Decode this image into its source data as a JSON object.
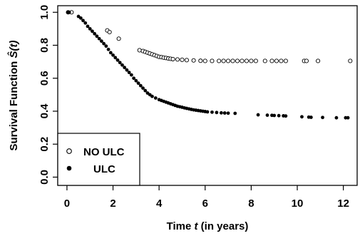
{
  "chart_data": {
    "type": "scatter",
    "xlabel": {
      "prefix": "Time ",
      "var": "t",
      "suffix": " (in years)"
    },
    "ylabel": {
      "prefix": "Survival Function ",
      "var": "Ŝ(t)"
    },
    "xlim": [
      -0.4,
      12.6
    ],
    "ylim": [
      -0.05,
      1.04
    ],
    "xticks": [
      0,
      2,
      4,
      6,
      8,
      10,
      12
    ],
    "yticks": [
      0.0,
      0.2,
      0.4,
      0.6,
      0.8,
      1.0
    ],
    "xtick_labels": [
      "0",
      "2",
      "4",
      "6",
      "8",
      "10",
      "12"
    ],
    "ytick_labels": [
      "0.0",
      "0.2",
      "0.4",
      "0.6",
      "0.8",
      "1.0"
    ],
    "grid": false,
    "legend_position": "bottom-left",
    "series": [
      {
        "name": "NO ULC",
        "marker": "open-circle",
        "points": [
          [
            0.05,
            1.0
          ],
          [
            0.2,
            1.0
          ],
          [
            1.75,
            0.89
          ],
          [
            1.85,
            0.88
          ],
          [
            2.25,
            0.84
          ],
          [
            3.15,
            0.77
          ],
          [
            3.3,
            0.765
          ],
          [
            3.4,
            0.76
          ],
          [
            3.5,
            0.755
          ],
          [
            3.6,
            0.75
          ],
          [
            3.7,
            0.745
          ],
          [
            3.8,
            0.74
          ],
          [
            3.9,
            0.735
          ],
          [
            4.0,
            0.73
          ],
          [
            4.1,
            0.728
          ],
          [
            4.2,
            0.725
          ],
          [
            4.3,
            0.723
          ],
          [
            4.4,
            0.72
          ],
          [
            4.5,
            0.718
          ],
          [
            4.6,
            0.716
          ],
          [
            4.8,
            0.714
          ],
          [
            5.0,
            0.712
          ],
          [
            5.2,
            0.71
          ],
          [
            5.5,
            0.708
          ],
          [
            5.8,
            0.706
          ],
          [
            6.0,
            0.705
          ],
          [
            6.3,
            0.705
          ],
          [
            6.6,
            0.705
          ],
          [
            6.8,
            0.705
          ],
          [
            7.0,
            0.705
          ],
          [
            7.2,
            0.705
          ],
          [
            7.4,
            0.705
          ],
          [
            7.6,
            0.705
          ],
          [
            7.8,
            0.705
          ],
          [
            8.0,
            0.705
          ],
          [
            8.2,
            0.705
          ],
          [
            8.6,
            0.705
          ],
          [
            8.9,
            0.705
          ],
          [
            9.1,
            0.705
          ],
          [
            9.3,
            0.705
          ],
          [
            9.5,
            0.705
          ],
          [
            10.3,
            0.705
          ],
          [
            10.4,
            0.705
          ],
          [
            10.9,
            0.705
          ],
          [
            12.3,
            0.705
          ]
        ]
      },
      {
        "name": "ULC",
        "marker": "filled-circle",
        "points": [
          [
            0.05,
            1.0
          ],
          [
            0.1,
            1.0
          ],
          [
            0.5,
            0.975
          ],
          [
            0.6,
            0.965
          ],
          [
            0.7,
            0.95
          ],
          [
            0.8,
            0.935
          ],
          [
            0.9,
            0.915
          ],
          [
            1.0,
            0.9
          ],
          [
            1.1,
            0.885
          ],
          [
            1.2,
            0.87
          ],
          [
            1.3,
            0.855
          ],
          [
            1.4,
            0.84
          ],
          [
            1.5,
            0.825
          ],
          [
            1.6,
            0.81
          ],
          [
            1.7,
            0.795
          ],
          [
            1.8,
            0.775
          ],
          [
            1.9,
            0.755
          ],
          [
            2.0,
            0.74
          ],
          [
            2.1,
            0.725
          ],
          [
            2.2,
            0.71
          ],
          [
            2.3,
            0.695
          ],
          [
            2.4,
            0.68
          ],
          [
            2.5,
            0.665
          ],
          [
            2.6,
            0.65
          ],
          [
            2.7,
            0.635
          ],
          [
            2.8,
            0.62
          ],
          [
            2.9,
            0.6
          ],
          [
            3.0,
            0.585
          ],
          [
            3.1,
            0.57
          ],
          [
            3.2,
            0.555
          ],
          [
            3.3,
            0.54
          ],
          [
            3.4,
            0.525
          ],
          [
            3.5,
            0.51
          ],
          [
            3.6,
            0.5
          ],
          [
            3.7,
            0.49
          ],
          [
            3.85,
            0.48
          ],
          [
            4.0,
            0.47
          ],
          [
            4.1,
            0.465
          ],
          [
            4.2,
            0.46
          ],
          [
            4.3,
            0.455
          ],
          [
            4.4,
            0.45
          ],
          [
            4.5,
            0.445
          ],
          [
            4.6,
            0.44
          ],
          [
            4.7,
            0.435
          ],
          [
            4.8,
            0.43
          ],
          [
            4.9,
            0.427
          ],
          [
            5.0,
            0.424
          ],
          [
            5.1,
            0.42
          ],
          [
            5.2,
            0.417
          ],
          [
            5.3,
            0.414
          ],
          [
            5.4,
            0.411
          ],
          [
            5.5,
            0.408
          ],
          [
            5.6,
            0.406
          ],
          [
            5.7,
            0.404
          ],
          [
            5.8,
            0.402
          ],
          [
            5.9,
            0.4
          ],
          [
            6.0,
            0.398
          ],
          [
            6.1,
            0.396
          ],
          [
            6.3,
            0.394
          ],
          [
            6.5,
            0.392
          ],
          [
            6.7,
            0.39
          ],
          [
            6.85,
            0.389
          ],
          [
            7.0,
            0.388
          ],
          [
            7.3,
            0.387
          ],
          [
            8.3,
            0.378
          ],
          [
            8.7,
            0.376
          ],
          [
            8.9,
            0.375
          ],
          [
            9.0,
            0.374
          ],
          [
            9.2,
            0.373
          ],
          [
            9.4,
            0.372
          ],
          [
            9.5,
            0.371
          ],
          [
            10.2,
            0.366
          ],
          [
            10.5,
            0.364
          ],
          [
            10.6,
            0.363
          ],
          [
            11.1,
            0.362
          ],
          [
            11.7,
            0.36
          ],
          [
            12.1,
            0.36
          ],
          [
            12.2,
            0.36
          ]
        ]
      }
    ]
  }
}
